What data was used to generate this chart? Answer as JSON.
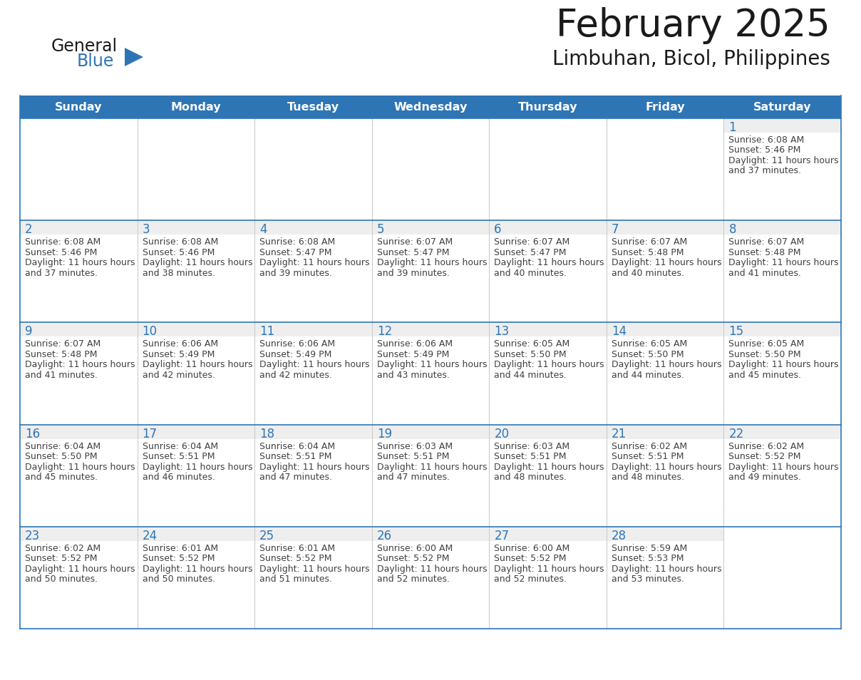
{
  "title": "February 2025",
  "subtitle": "Limbuhan, Bicol, Philippines",
  "days_of_week": [
    "Sunday",
    "Monday",
    "Tuesday",
    "Wednesday",
    "Thursday",
    "Friday",
    "Saturday"
  ],
  "header_bg": "#2E75B6",
  "header_text_color": "#FFFFFF",
  "cell_border_color": "#2E75B6",
  "day_number_color": "#2E75B6",
  "info_text_color": "#404040",
  "background_color": "#FFFFFF",
  "cell_top_bg": "#eeeeee",
  "title_color": "#1a1a1a",
  "subtitle_color": "#1a1a1a",
  "logo_general_color": "#1a1a1a",
  "logo_blue_color": "#2E75B6",
  "calendar_data": [
    [
      null,
      null,
      null,
      null,
      null,
      null,
      {
        "day": 1,
        "sunrise": "6:08 AM",
        "sunset": "5:46 PM",
        "daylight": "11 hours and 37 minutes."
      }
    ],
    [
      {
        "day": 2,
        "sunrise": "6:08 AM",
        "sunset": "5:46 PM",
        "daylight": "11 hours and 37 minutes."
      },
      {
        "day": 3,
        "sunrise": "6:08 AM",
        "sunset": "5:46 PM",
        "daylight": "11 hours and 38 minutes."
      },
      {
        "day": 4,
        "sunrise": "6:08 AM",
        "sunset": "5:47 PM",
        "daylight": "11 hours and 39 minutes."
      },
      {
        "day": 5,
        "sunrise": "6:07 AM",
        "sunset": "5:47 PM",
        "daylight": "11 hours and 39 minutes."
      },
      {
        "day": 6,
        "sunrise": "6:07 AM",
        "sunset": "5:47 PM",
        "daylight": "11 hours and 40 minutes."
      },
      {
        "day": 7,
        "sunrise": "6:07 AM",
        "sunset": "5:48 PM",
        "daylight": "11 hours and 40 minutes."
      },
      {
        "day": 8,
        "sunrise": "6:07 AM",
        "sunset": "5:48 PM",
        "daylight": "11 hours and 41 minutes."
      }
    ],
    [
      {
        "day": 9,
        "sunrise": "6:07 AM",
        "sunset": "5:48 PM",
        "daylight": "11 hours and 41 minutes."
      },
      {
        "day": 10,
        "sunrise": "6:06 AM",
        "sunset": "5:49 PM",
        "daylight": "11 hours and 42 minutes."
      },
      {
        "day": 11,
        "sunrise": "6:06 AM",
        "sunset": "5:49 PM",
        "daylight": "11 hours and 42 minutes."
      },
      {
        "day": 12,
        "sunrise": "6:06 AM",
        "sunset": "5:49 PM",
        "daylight": "11 hours and 43 minutes."
      },
      {
        "day": 13,
        "sunrise": "6:05 AM",
        "sunset": "5:50 PM",
        "daylight": "11 hours and 44 minutes."
      },
      {
        "day": 14,
        "sunrise": "6:05 AM",
        "sunset": "5:50 PM",
        "daylight": "11 hours and 44 minutes."
      },
      {
        "day": 15,
        "sunrise": "6:05 AM",
        "sunset": "5:50 PM",
        "daylight": "11 hours and 45 minutes."
      }
    ],
    [
      {
        "day": 16,
        "sunrise": "6:04 AM",
        "sunset": "5:50 PM",
        "daylight": "11 hours and 45 minutes."
      },
      {
        "day": 17,
        "sunrise": "6:04 AM",
        "sunset": "5:51 PM",
        "daylight": "11 hours and 46 minutes."
      },
      {
        "day": 18,
        "sunrise": "6:04 AM",
        "sunset": "5:51 PM",
        "daylight": "11 hours and 47 minutes."
      },
      {
        "day": 19,
        "sunrise": "6:03 AM",
        "sunset": "5:51 PM",
        "daylight": "11 hours and 47 minutes."
      },
      {
        "day": 20,
        "sunrise": "6:03 AM",
        "sunset": "5:51 PM",
        "daylight": "11 hours and 48 minutes."
      },
      {
        "day": 21,
        "sunrise": "6:02 AM",
        "sunset": "5:51 PM",
        "daylight": "11 hours and 48 minutes."
      },
      {
        "day": 22,
        "sunrise": "6:02 AM",
        "sunset": "5:52 PM",
        "daylight": "11 hours and 49 minutes."
      }
    ],
    [
      {
        "day": 23,
        "sunrise": "6:02 AM",
        "sunset": "5:52 PM",
        "daylight": "11 hours and 50 minutes."
      },
      {
        "day": 24,
        "sunrise": "6:01 AM",
        "sunset": "5:52 PM",
        "daylight": "11 hours and 50 minutes."
      },
      {
        "day": 25,
        "sunrise": "6:01 AM",
        "sunset": "5:52 PM",
        "daylight": "11 hours and 51 minutes."
      },
      {
        "day": 26,
        "sunrise": "6:00 AM",
        "sunset": "5:52 PM",
        "daylight": "11 hours and 52 minutes."
      },
      {
        "day": 27,
        "sunrise": "6:00 AM",
        "sunset": "5:52 PM",
        "daylight": "11 hours and 52 minutes."
      },
      {
        "day": 28,
        "sunrise": "5:59 AM",
        "sunset": "5:53 PM",
        "daylight": "11 hours and 53 minutes."
      },
      null
    ]
  ]
}
